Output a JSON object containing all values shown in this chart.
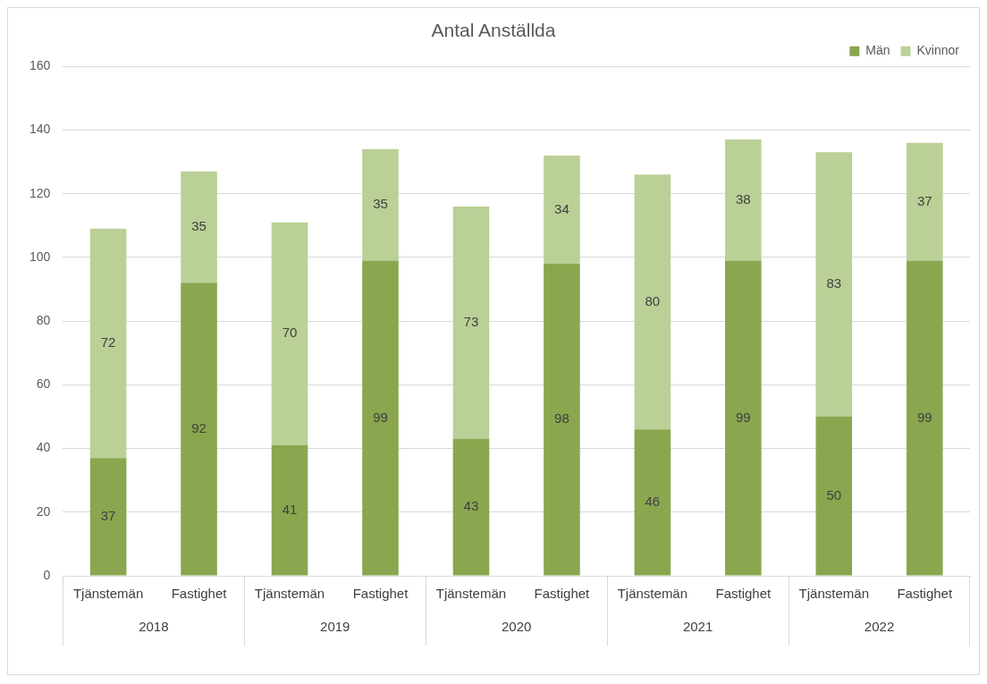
{
  "chart_data": {
    "type": "bar",
    "title": "Antal Anställda",
    "stacked": true,
    "categories": [
      "Tjänstemän",
      "Fastighet",
      "Tjänstemän",
      "Fastighet",
      "Tjänstemän",
      "Fastighet",
      "Tjänstemän",
      "Fastighet",
      "Tjänstemän",
      "Fastighet"
    ],
    "series": [
      {
        "name": "Män",
        "color": "#8aa64e",
        "values": [
          37,
          92,
          41,
          99,
          43,
          98,
          46,
          99,
          50,
          99
        ]
      },
      {
        "name": "Kvinnor",
        "color": "#bad096",
        "values": [
          72,
          35,
          70,
          35,
          73,
          34,
          80,
          38,
          83,
          37
        ]
      }
    ],
    "annotations": [
      "2018",
      "2019",
      "2020",
      "2021",
      "2022"
    ],
    "ylim": [
      0,
      160
    ],
    "yticks": [
      0,
      20,
      40,
      60,
      80,
      100,
      120,
      140,
      160
    ],
    "grid": "y",
    "legend": "top right",
    "data_labels": true
  }
}
